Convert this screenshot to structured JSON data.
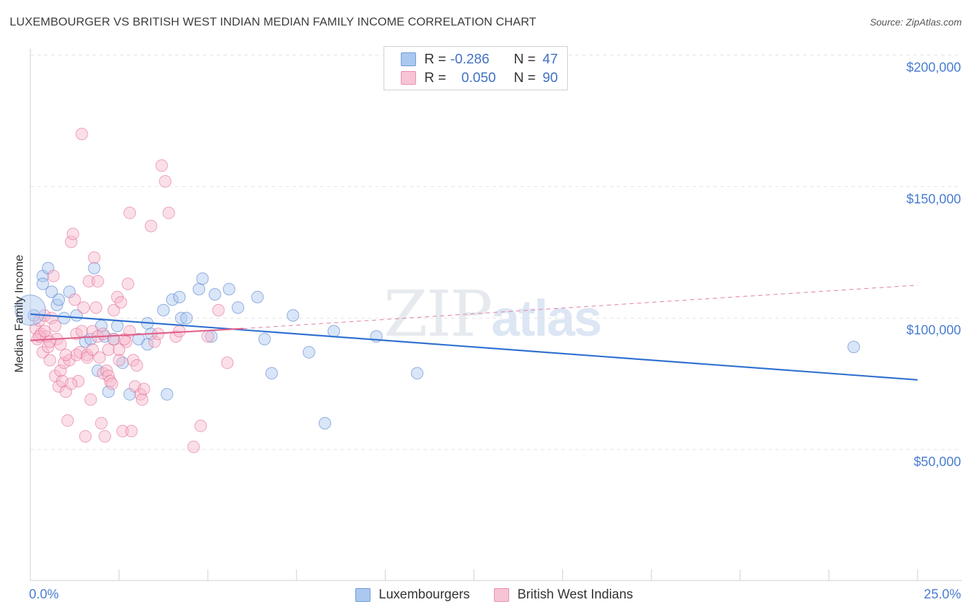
{
  "title": "LUXEMBOURGER VS BRITISH WEST INDIAN MEDIAN FAMILY INCOME CORRELATION CHART",
  "source": "Source: ZipAtlas.com",
  "watermark": {
    "zip": "ZIP",
    "atlas": "atlas"
  },
  "legend": {
    "r_label": "R =",
    "n_label": "N =",
    "series": [
      {
        "r": "-0.286",
        "n": "47",
        "swatch_color": "#aac8f0"
      },
      {
        "r": "0.050",
        "n": "90",
        "swatch_color": "#f6b8cc"
      }
    ]
  },
  "chart_data": {
    "type": "scatter",
    "title": "LUXEMBOURGER VS BRITISH WEST INDIAN MEDIAN FAMILY INCOME CORRELATION CHART",
    "xlabel": "",
    "ylabel": "Median Family Income",
    "xlim": [
      0,
      25
    ],
    "ylim": [
      0,
      210000
    ],
    "x_tick_labels": [
      "0.0%",
      "25.0%"
    ],
    "y_ticks": [
      50000,
      100000,
      150000,
      200000
    ],
    "y_tick_labels": [
      "$50,000",
      "$100,000",
      "$150,000",
      "$200,000"
    ],
    "grid": true,
    "series": [
      {
        "name": "Luxembourgers",
        "color": "#4472c4",
        "fill": "#aac8f0",
        "points": [
          [
            0.1,
            101000
          ],
          [
            0.35,
            116000
          ],
          [
            0.35,
            113000
          ],
          [
            0.5,
            119000
          ],
          [
            0.6,
            110000
          ],
          [
            0.75,
            105000
          ],
          [
            0.8,
            107000
          ],
          [
            0.95,
            100000
          ],
          [
            1.1,
            110000
          ],
          [
            1.3,
            101000
          ],
          [
            1.55,
            91000
          ],
          [
            1.7,
            92000
          ],
          [
            1.8,
            119000
          ],
          [
            1.9,
            80000
          ],
          [
            2.0,
            97000
          ],
          [
            2.1,
            93000
          ],
          [
            2.2,
            72000
          ],
          [
            2.35,
            92000
          ],
          [
            2.45,
            97000
          ],
          [
            2.6,
            83000
          ],
          [
            2.8,
            71000
          ],
          [
            3.05,
            92000
          ],
          [
            3.3,
            98000
          ],
          [
            3.4,
            94000
          ],
          [
            3.3,
            90000
          ],
          [
            3.75,
            103000
          ],
          [
            3.85,
            71000
          ],
          [
            4.0,
            107000
          ],
          [
            4.2,
            108000
          ],
          [
            4.25,
            100000
          ],
          [
            4.4,
            100000
          ],
          [
            4.75,
            111000
          ],
          [
            4.85,
            115000
          ],
          [
            5.1,
            93000
          ],
          [
            5.2,
            109000
          ],
          [
            5.6,
            111000
          ],
          [
            5.85,
            104000
          ],
          [
            6.4,
            108000
          ],
          [
            6.6,
            92000
          ],
          [
            6.8,
            79000
          ],
          [
            7.4,
            101000
          ],
          [
            7.85,
            87000
          ],
          [
            8.3,
            60000
          ],
          [
            8.55,
            95000
          ],
          [
            9.75,
            93000
          ],
          [
            10.9,
            79000
          ],
          [
            23.2,
            89000
          ]
        ],
        "trend": {
          "x": [
            0,
            25
          ],
          "y": [
            101500,
            76500
          ]
        }
      },
      {
        "name": "British West Indians",
        "color": "#e0608a",
        "fill": "#f6b8cc",
        "points": [
          [
            0.15,
            96000
          ],
          [
            0.2,
            92000
          ],
          [
            0.25,
            99000
          ],
          [
            0.3,
            94000
          ],
          [
            0.35,
            87000
          ],
          [
            0.4,
            101000
          ],
          [
            0.45,
            93000
          ],
          [
            0.5,
            89000
          ],
          [
            0.55,
            84000
          ],
          [
            0.6,
            100000
          ],
          [
            0.65,
            116000
          ],
          [
            0.7,
            78000
          ],
          [
            0.75,
            92000
          ],
          [
            0.8,
            74000
          ],
          [
            0.85,
            80000
          ],
          [
            0.9,
            76000
          ],
          [
            0.95,
            83000
          ],
          [
            1.0,
            72000
          ],
          [
            1.05,
            61000
          ],
          [
            1.1,
            84000
          ],
          [
            1.15,
            129000
          ],
          [
            1.2,
            132000
          ],
          [
            1.25,
            107000
          ],
          [
            1.3,
            86000
          ],
          [
            1.35,
            76000
          ],
          [
            1.4,
            87000
          ],
          [
            1.45,
            170000
          ],
          [
            1.5,
            104000
          ],
          [
            1.55,
            55000
          ],
          [
            1.6,
            86000
          ],
          [
            1.65,
            114000
          ],
          [
            1.7,
            69000
          ],
          [
            1.75,
            95000
          ],
          [
            1.8,
            123000
          ],
          [
            1.85,
            104000
          ],
          [
            1.9,
            114000
          ],
          [
            1.95,
            85000
          ],
          [
            2.0,
            60000
          ],
          [
            2.05,
            79000
          ],
          [
            2.1,
            55000
          ],
          [
            2.15,
            80000
          ],
          [
            2.2,
            78000
          ],
          [
            2.25,
            76000
          ],
          [
            2.3,
            75000
          ],
          [
            2.35,
            103000
          ],
          [
            2.45,
            108000
          ],
          [
            2.5,
            84000
          ],
          [
            2.55,
            106000
          ],
          [
            2.6,
            57000
          ],
          [
            2.7,
            91000
          ],
          [
            2.75,
            113000
          ],
          [
            2.8,
            140000
          ],
          [
            2.85,
            57000
          ],
          [
            2.9,
            84000
          ],
          [
            2.95,
            74000
          ],
          [
            3.0,
            82000
          ],
          [
            3.1,
            71000
          ],
          [
            3.15,
            69000
          ],
          [
            3.2,
            73000
          ],
          [
            3.4,
            135000
          ],
          [
            3.5,
            91000
          ],
          [
            3.6,
            94000
          ],
          [
            3.7,
            158000
          ],
          [
            3.8,
            152000
          ],
          [
            3.9,
            140000
          ],
          [
            4.1,
            93000
          ],
          [
            4.2,
            95000
          ],
          [
            4.6,
            51000
          ],
          [
            4.8,
            59000
          ],
          [
            5.0,
            93000
          ],
          [
            5.3,
            103000
          ],
          [
            5.55,
            83000
          ],
          [
            0.25,
            93000
          ],
          [
            0.4,
            95000
          ],
          [
            0.55,
            91000
          ],
          [
            0.7,
            97000
          ],
          [
            0.85,
            90000
          ],
          [
            1.0,
            86000
          ],
          [
            1.15,
            75000
          ],
          [
            1.3,
            94000
          ],
          [
            1.45,
            95000
          ],
          [
            1.6,
            85000
          ],
          [
            1.75,
            88000
          ],
          [
            1.9,
            93000
          ],
          [
            2.05,
            94000
          ],
          [
            2.2,
            88000
          ],
          [
            2.35,
            92000
          ],
          [
            2.5,
            88000
          ],
          [
            2.65,
            92000
          ],
          [
            2.8,
            95000
          ]
        ],
        "trend": {
          "x": [
            0,
            6
          ],
          "y": [
            91500,
            96000
          ]
        },
        "trend_dashed": {
          "x": [
            6,
            25
          ],
          "y": [
            96000,
            112500
          ]
        }
      }
    ]
  },
  "bottom_legend": [
    {
      "label": "Luxembourgers",
      "swatch_color": "#aac8f0"
    },
    {
      "label": "British West Indians",
      "swatch_color": "#f6b8cc"
    }
  ]
}
